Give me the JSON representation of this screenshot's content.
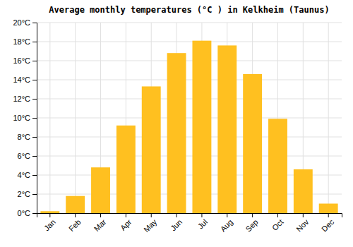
{
  "chart_data": {
    "type": "bar",
    "title": "Average monthly temperatures (°C ) in Kelkheim (Taunus)",
    "categories": [
      "Jan",
      "Feb",
      "Mar",
      "Apr",
      "May",
      "Jun",
      "Jul",
      "Aug",
      "Sep",
      "Oct",
      "Nov",
      "Dec"
    ],
    "values": [
      0.2,
      1.8,
      4.8,
      9.2,
      13.3,
      16.8,
      18.1,
      17.6,
      14.6,
      9.9,
      4.6,
      1.0
    ],
    "color": "#FFC020",
    "ylim": [
      0,
      20
    ],
    "yticks": [
      {
        "value": 0,
        "label": "0°C"
      },
      {
        "value": 2,
        "label": "2°C"
      },
      {
        "value": 4,
        "label": "4°C"
      },
      {
        "value": 6,
        "label": "6°C"
      },
      {
        "value": 8,
        "label": "8°C"
      },
      {
        "value": 10,
        "label": "10°C"
      },
      {
        "value": 12,
        "label": "12°C"
      },
      {
        "value": 14,
        "label": "14°C"
      },
      {
        "value": 16,
        "label": "16°C"
      },
      {
        "value": 18,
        "label": "18°C"
      },
      {
        "value": 20,
        "label": "20°C"
      }
    ],
    "grid": true
  }
}
